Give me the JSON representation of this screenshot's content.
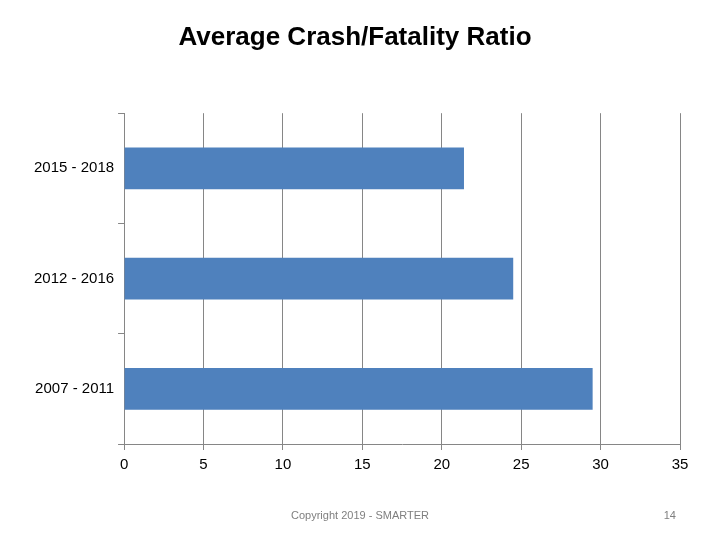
{
  "chart_data": {
    "type": "bar",
    "title": "Average Crash/Fatality Ratio",
    "orientation": "horizontal",
    "categories": [
      "2015 - 2018",
      "2012 - 2016",
      "2007 - 2011"
    ],
    "values": [
      21.4,
      24.5,
      29.5
    ],
    "color": "#4f81bd",
    "xlim": [
      0,
      35
    ],
    "xticks": [
      0,
      5,
      10,
      15,
      20,
      25,
      30,
      35
    ],
    "grid": true,
    "annotations": [
      "Copyright 2019 - SMARTER",
      "14"
    ]
  }
}
